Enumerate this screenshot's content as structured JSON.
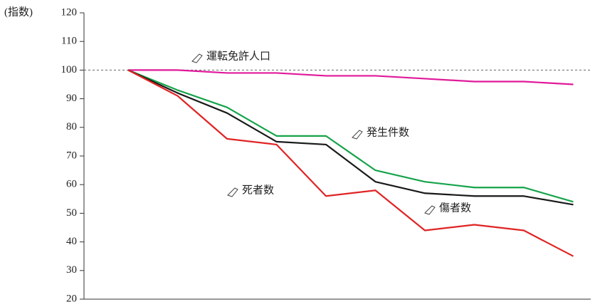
{
  "chart_data": {
    "type": "line",
    "y_label": "(指数)",
    "categories": [
      null,
      null,
      null,
      null,
      null,
      null,
      null,
      null,
      null,
      null
    ],
    "series": [
      {
        "name": "運転免許人口",
        "color": "#e0199a",
        "values": [
          100,
          100,
          99,
          99,
          98,
          98,
          97,
          96,
          96,
          95
        ]
      },
      {
        "name": "発生件数",
        "color": "#16a34a",
        "values": [
          100,
          93,
          87,
          77,
          77,
          65,
          61,
          59,
          59,
          54
        ]
      },
      {
        "name": "傷者数",
        "color": "#1a1a1a",
        "values": [
          100,
          92,
          85,
          75,
          74,
          61,
          57,
          56,
          56,
          53
        ]
      },
      {
        "name": "死者数",
        "color": "#e02424",
        "values": [
          100,
          91,
          76,
          74,
          56,
          58,
          44,
          46,
          44,
          35
        ]
      }
    ],
    "reference_line": 100,
    "ylim": [
      20,
      120
    ],
    "yticks": [
      20,
      30,
      40,
      50,
      60,
      70,
      80,
      90,
      100,
      110,
      120
    ],
    "grid": false
  }
}
